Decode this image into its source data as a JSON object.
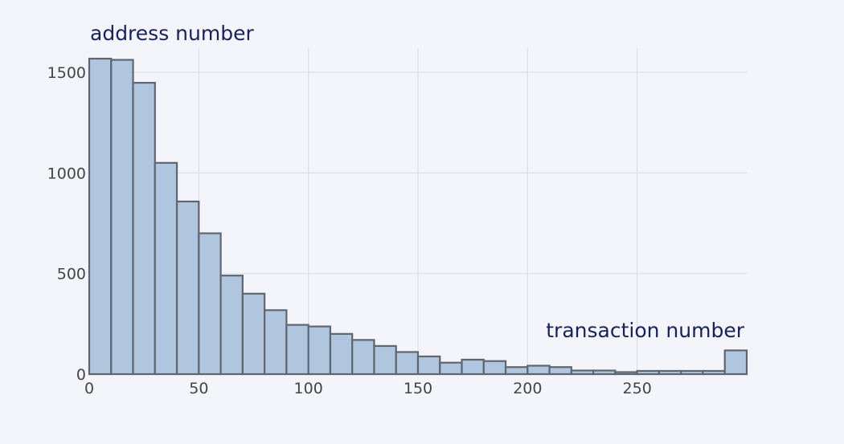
{
  "chart_data": {
    "type": "bar",
    "subtype": "histogram",
    "ylabel": "address number",
    "xlabel": "transaction number",
    "bin_width": 10,
    "bin_starts": [
      0,
      10,
      20,
      30,
      40,
      50,
      60,
      70,
      80,
      90,
      100,
      110,
      120,
      130,
      140,
      150,
      160,
      170,
      180,
      190,
      200,
      210,
      220,
      230,
      240,
      250,
      260,
      270,
      280,
      290
    ],
    "values": [
      1568,
      1562,
      1448,
      1050,
      858,
      700,
      490,
      400,
      318,
      245,
      237,
      200,
      170,
      140,
      110,
      88,
      57,
      72,
      65,
      35,
      42,
      35,
      18,
      18,
      10,
      16,
      16,
      16,
      16,
      118
    ],
    "xlim": [
      0,
      300
    ],
    "ylim": [
      0,
      1620
    ],
    "x_ticks": [
      0,
      50,
      100,
      150,
      200,
      250
    ],
    "y_ticks": [
      0,
      500,
      1000,
      1500
    ],
    "grid": true,
    "colors": {
      "bar_fill": "#afc6de",
      "bar_edge": "#5f6670",
      "grid": "#dcdfe6",
      "title": "#16215e",
      "tick": "#444444"
    }
  }
}
